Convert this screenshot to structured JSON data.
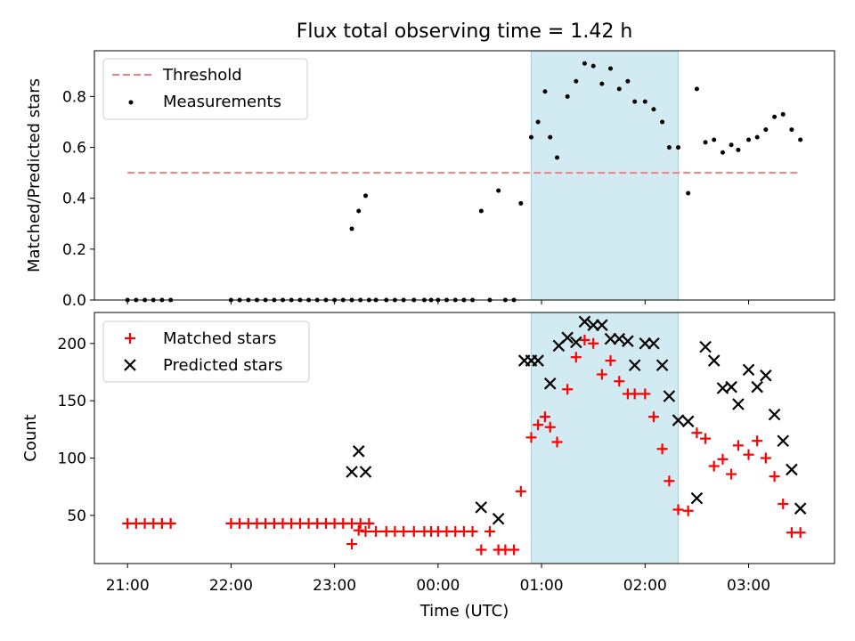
{
  "chart_data": [
    {
      "type": "scatter",
      "title": "Flux total observing time = 1.42 h",
      "xlabel": "",
      "ylabel": "Matched/Predicted stars",
      "xlim": [
        -0.32,
        6.83
      ],
      "ylim": [
        0,
        0.98
      ],
      "yticks": [
        0.0,
        0.2,
        0.4,
        0.6,
        0.8
      ],
      "ytick_labels": [
        "0.0",
        "0.2",
        "0.4",
        "0.6",
        "0.8"
      ],
      "legend": {
        "position": "upper-left",
        "entries": [
          "Threshold",
          "Measurements"
        ]
      },
      "shaded_interval": {
        "x": [
          3.9,
          5.32
        ],
        "color": "#add8e6"
      },
      "threshold": {
        "name": "Threshold",
        "y": 0.5,
        "x": [
          0,
          6.5
        ],
        "color": "#f08080",
        "style": "dashed"
      },
      "series": [
        {
          "name": "Measurements",
          "color": "#000000",
          "marker": "dot",
          "x": [
            0,
            0.083,
            0.167,
            0.25,
            0.333,
            0.417,
            1.0,
            1.083,
            1.167,
            1.25,
            1.333,
            1.417,
            1.5,
            1.583,
            1.667,
            1.75,
            1.833,
            1.917,
            2.0,
            2.083,
            2.167,
            2.25,
            2.333,
            2.167,
            2.233,
            2.3,
            2.4,
            2.5,
            2.583,
            2.667,
            2.767,
            2.867,
            2.933,
            3.0,
            3.083,
            3.167,
            3.25,
            3.333,
            3.417,
            3.5,
            3.583,
            3.65,
            3.733,
            3.8,
            3.9,
            3.966,
            4.033,
            4.083,
            4.15,
            4.25,
            4.333,
            4.416,
            4.5,
            4.583,
            4.666,
            4.75,
            4.833,
            4.9,
            5.0,
            5.083,
            5.166,
            5.233,
            5.32,
            5.416,
            5.5,
            5.583,
            5.666,
            5.75,
            5.833,
            5.9,
            6.0,
            6.083,
            6.166,
            6.25,
            6.333,
            6.416,
            6.5
          ],
          "y": [
            0,
            0,
            0,
            0,
            0,
            0,
            0,
            0,
            0,
            0,
            0,
            0,
            0,
            0,
            0,
            0,
            0,
            0,
            0,
            0,
            0,
            0,
            0,
            0.28,
            0.35,
            0.41,
            0,
            0,
            0,
            0,
            0,
            0,
            0,
            0,
            0,
            0,
            0,
            0,
            0.35,
            0,
            0.43,
            0,
            0,
            0.38,
            0.64,
            0.7,
            0.82,
            0.64,
            0.56,
            0.8,
            0.86,
            0.93,
            0.92,
            0.85,
            0.91,
            0.83,
            0.86,
            0.78,
            0.78,
            0.75,
            0.7,
            0.6,
            0.6,
            0.42,
            0.83,
            0.62,
            0.63,
            0.58,
            0.61,
            0.59,
            0.63,
            0.64,
            0.67,
            0.72,
            0.73,
            0.67,
            0.63
          ]
        }
      ]
    },
    {
      "type": "scatter",
      "xlabel": "Time (UTC)",
      "ylabel": "Count",
      "xlim": [
        -0.32,
        6.83
      ],
      "ylim": [
        8,
        227
      ],
      "yticks": [
        50,
        100,
        150,
        200
      ],
      "ytick_labels": [
        "50",
        "100",
        "150",
        "200"
      ],
      "xticks": [
        0,
        1,
        2,
        3,
        4,
        5,
        6
      ],
      "xtick_labels": [
        "21:00",
        "22:00",
        "23:00",
        "00:00",
        "01:00",
        "02:00",
        "03:00"
      ],
      "legend": {
        "position": "upper-left",
        "entries": [
          "Matched stars",
          "Predicted stars"
        ]
      },
      "shaded_interval": {
        "x": [
          3.9,
          5.32
        ],
        "color": "#add8e6"
      },
      "series": [
        {
          "name": "Matched stars",
          "color": "#ff0000",
          "marker": "plus",
          "x": [
            0,
            0.083,
            0.167,
            0.25,
            0.333,
            0.417,
            1.0,
            1.083,
            1.167,
            1.25,
            1.333,
            1.417,
            1.5,
            1.583,
            1.667,
            1.75,
            1.833,
            1.917,
            2.0,
            2.083,
            2.167,
            2.25,
            2.333,
            2.167,
            2.233,
            2.3,
            2.4,
            2.5,
            2.583,
            2.667,
            2.767,
            2.867,
            2.933,
            3.0,
            3.083,
            3.167,
            3.25,
            3.333,
            3.417,
            3.5,
            3.583,
            3.65,
            3.733,
            3.8,
            3.9,
            3.966,
            4.033,
            4.083,
            4.15,
            4.25,
            4.333,
            4.416,
            4.5,
            4.583,
            4.666,
            4.75,
            4.833,
            4.9,
            5.0,
            5.083,
            5.166,
            5.233,
            5.32,
            5.416,
            5.5,
            5.583,
            5.666,
            5.75,
            5.833,
            5.9,
            6.0,
            6.083,
            6.166,
            6.25,
            6.333,
            6.416,
            6.5
          ],
          "y": [
            43,
            43,
            43,
            43,
            43,
            43,
            43,
            43,
            43,
            43,
            43,
            43,
            43,
            43,
            43,
            43,
            43,
            43,
            43,
            43,
            43,
            43,
            43,
            25,
            37,
            36,
            36,
            36,
            36,
            36,
            36,
            36,
            36,
            36,
            36,
            36,
            36,
            36,
            20,
            36,
            20,
            20,
            20,
            71,
            118,
            129,
            136,
            127,
            114,
            160,
            188,
            203,
            200,
            173,
            185,
            167,
            156,
            156,
            156,
            136,
            108,
            80,
            55,
            54,
            122,
            117,
            93,
            99,
            86,
            111,
            103,
            115,
            100,
            84,
            60,
            35,
            35
          ]
        },
        {
          "name": "Predicted stars",
          "color": "#000000",
          "marker": "x",
          "x": [
            2.167,
            2.233,
            2.3,
            3.416,
            3.583,
            3.833,
            3.9,
            3.966,
            4.083,
            4.166,
            4.25,
            4.333,
            4.416,
            4.5,
            4.583,
            4.666,
            4.75,
            4.833,
            4.9,
            5.0,
            5.083,
            5.166,
            5.233,
            5.32,
            5.416,
            5.5,
            5.583,
            5.666,
            5.75,
            5.833,
            5.9,
            6.0,
            6.083,
            6.166,
            6.25,
            6.333,
            6.416,
            6.5
          ],
          "y": [
            88,
            106,
            88,
            57,
            47,
            185,
            185,
            185,
            165,
            198,
            205,
            201,
            219,
            216,
            216,
            204,
            204,
            202,
            181,
            200,
            200,
            181,
            154,
            133,
            132,
            65,
            197,
            185,
            161,
            162,
            147,
            177,
            162,
            172,
            138,
            115,
            90,
            56
          ]
        }
      ]
    }
  ]
}
